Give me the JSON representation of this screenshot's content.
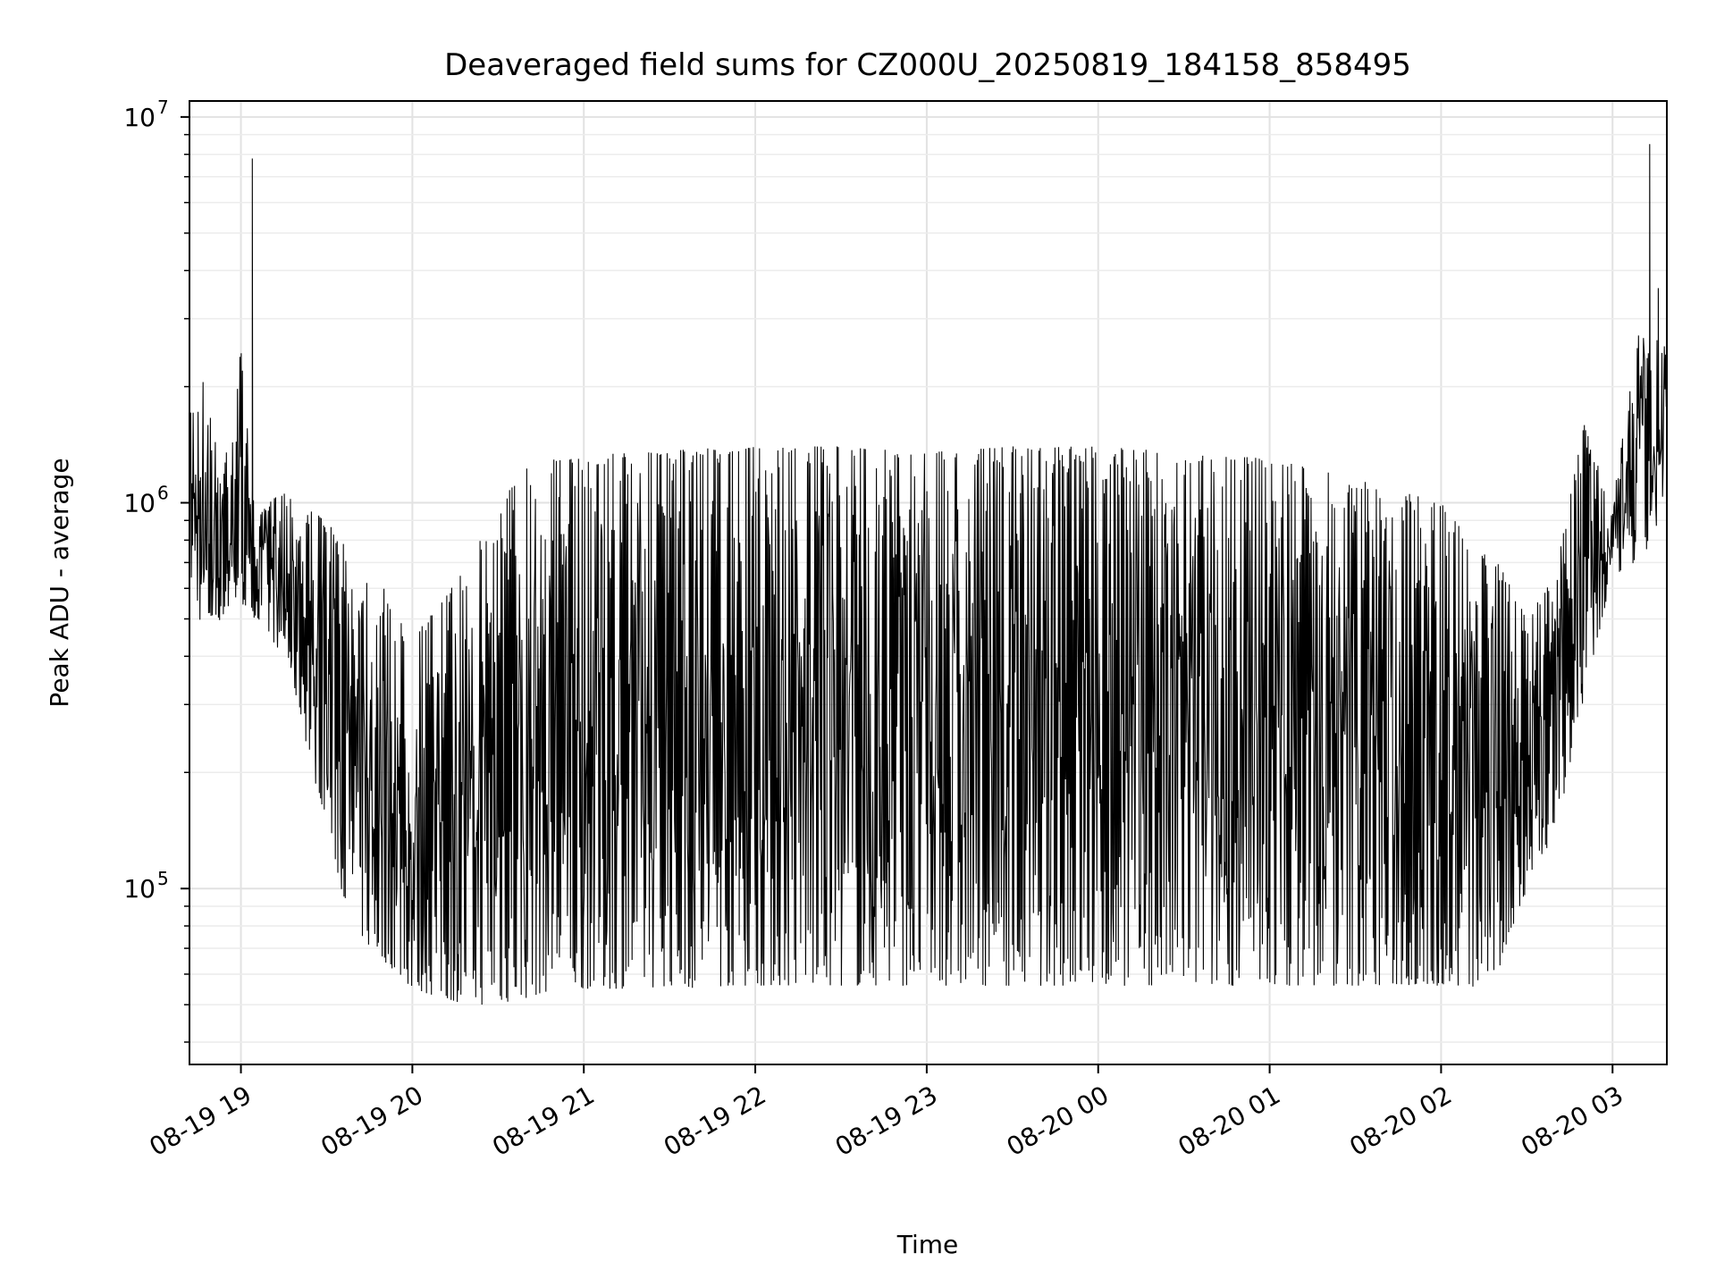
{
  "chart_data": {
    "type": "line",
    "title": "Deaveraged field sums for CZ000U_20250819_184158_858495",
    "xlabel": "Time",
    "ylabel": "Peak ADU - average",
    "yscale": "log",
    "ylim": [
      35000,
      11000000
    ],
    "xlim": [
      "2025-08-19 18:42",
      "2025-08-20 03:19"
    ],
    "grid": true,
    "line_color": "#000000",
    "x_ticks": [
      {
        "value": "2025-08-19 19:00",
        "label": "08-19 19"
      },
      {
        "value": "2025-08-19 20:00",
        "label": "08-19 20"
      },
      {
        "value": "2025-08-19 21:00",
        "label": "08-19 21"
      },
      {
        "value": "2025-08-19 22:00",
        "label": "08-19 22"
      },
      {
        "value": "2025-08-19 23:00",
        "label": "08-19 23"
      },
      {
        "value": "2025-08-20 00:00",
        "label": "08-20 00"
      },
      {
        "value": "2025-08-20 01:00",
        "label": "08-20 01"
      },
      {
        "value": "2025-08-20 02:00",
        "label": "08-20 02"
      },
      {
        "value": "2025-08-20 03:00",
        "label": "08-20 03"
      }
    ],
    "y_ticks": [
      {
        "value": 100000,
        "base": "10",
        "exp": "5"
      },
      {
        "value": 1000000,
        "base": "10",
        "exp": "6"
      },
      {
        "value": 10000000,
        "base": "10",
        "exp": "7"
      }
    ],
    "series": [
      {
        "x": [
          "2025-08-19 18:42",
          "2025-08-19 18:47",
          "2025-08-19 18:53",
          "2025-08-19 19:00",
          "2025-08-19 19:05",
          "2025-08-19 19:10",
          "2025-08-19 19:15",
          "2025-08-19 19:20",
          "2025-08-19 19:25",
          "2025-08-19 19:30",
          "2025-08-19 19:35",
          "2025-08-19 19:40",
          "2025-08-19 19:45",
          "2025-08-19 19:50",
          "2025-08-19 19:55",
          "2025-08-19 20:00",
          "2025-08-19 20:10",
          "2025-08-19 20:20",
          "2025-08-19 20:30",
          "2025-08-19 20:40",
          "2025-08-19 20:50",
          "2025-08-19 21:00",
          "2025-08-19 21:10",
          "2025-08-19 21:20",
          "2025-08-19 21:30",
          "2025-08-19 21:40",
          "2025-08-19 21:50",
          "2025-08-19 22:00",
          "2025-08-19 22:30",
          "2025-08-19 23:00",
          "2025-08-19 23:30",
          "2025-08-20 00:00",
          "2025-08-20 00:30",
          "2025-08-20 01:00",
          "2025-08-20 01:20",
          "2025-08-20 01:40",
          "2025-08-20 02:00",
          "2025-08-20 02:10",
          "2025-08-20 02:20",
          "2025-08-20 02:30",
          "2025-08-20 02:40",
          "2025-08-20 02:50",
          "2025-08-20 03:00",
          "2025-08-20 03:10",
          "2025-08-20 03:19"
        ],
        "upper": [
          1800000,
          2100000,
          1200000,
          2500000,
          900000,
          1000000,
          1100000,
          1000000,
          950000,
          900000,
          800000,
          700000,
          650000,
          600000,
          500000,
          450000,
          550000,
          700000,
          1000000,
          1250000,
          1300000,
          1300000,
          1350000,
          1350000,
          1350000,
          1400000,
          1350000,
          1400000,
          1400000,
          1350000,
          1400000,
          1400000,
          1350000,
          1300000,
          1200000,
          1100000,
          1000000,
          800000,
          700000,
          500000,
          650000,
          1600000,
          1000000,
          3000000,
          2500000
        ],
        "lower": [
          650000,
          450000,
          500000,
          550000,
          500000,
          450000,
          400000,
          300000,
          200000,
          150000,
          100000,
          80000,
          70000,
          65000,
          60000,
          55000,
          52000,
          50000,
          50000,
          52000,
          55000,
          55000,
          55000,
          55000,
          56000,
          55000,
          56000,
          56000,
          56000,
          56000,
          56000,
          56000,
          56000,
          56000,
          56000,
          56000,
          56000,
          55000,
          60000,
          100000,
          140000,
          300000,
          650000,
          700000,
          1000000
        ],
        "spikes": [
          {
            "x": "2025-08-19 19:04",
            "value": 7800000
          },
          {
            "x": "2025-08-20 03:13",
            "value": 8500000
          },
          {
            "x": "2025-08-20 03:16",
            "value": 3600000
          }
        ]
      }
    ]
  }
}
